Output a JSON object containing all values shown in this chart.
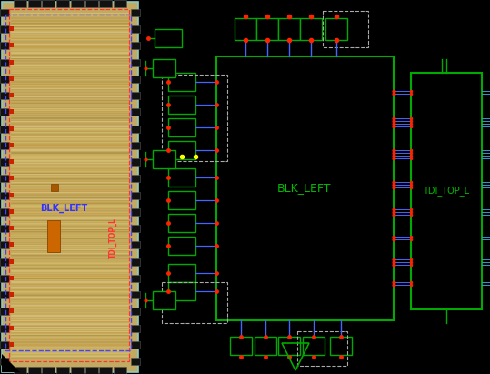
{
  "bg_color": "#000000",
  "green": "#00aa00",
  "green_dark": "#004400",
  "red": "#ff2200",
  "blue": "#4466ff",
  "cyan": "#3399cc",
  "white_dash": "#aaaaaa",
  "layout_bg_outer": "#c8b060",
  "layout_bg_inner": "#c8b060",
  "layout_pad_dark": "#111111",
  "layout_cyan_border": "#88cccc",
  "blk_label": "BLK_LEFT",
  "blk_label_color": "#3333ff",
  "tdi_label_rot": "TDI_TOP_L",
  "tdi_label_rot_color": "#ff3333",
  "blk_sch_label": "BLK_LEFT",
  "blk_sch_label_color": "#00bb00",
  "tdi_sch_label": "TDI_TOP_L",
  "tdi_sch_label_color": "#00bb00"
}
